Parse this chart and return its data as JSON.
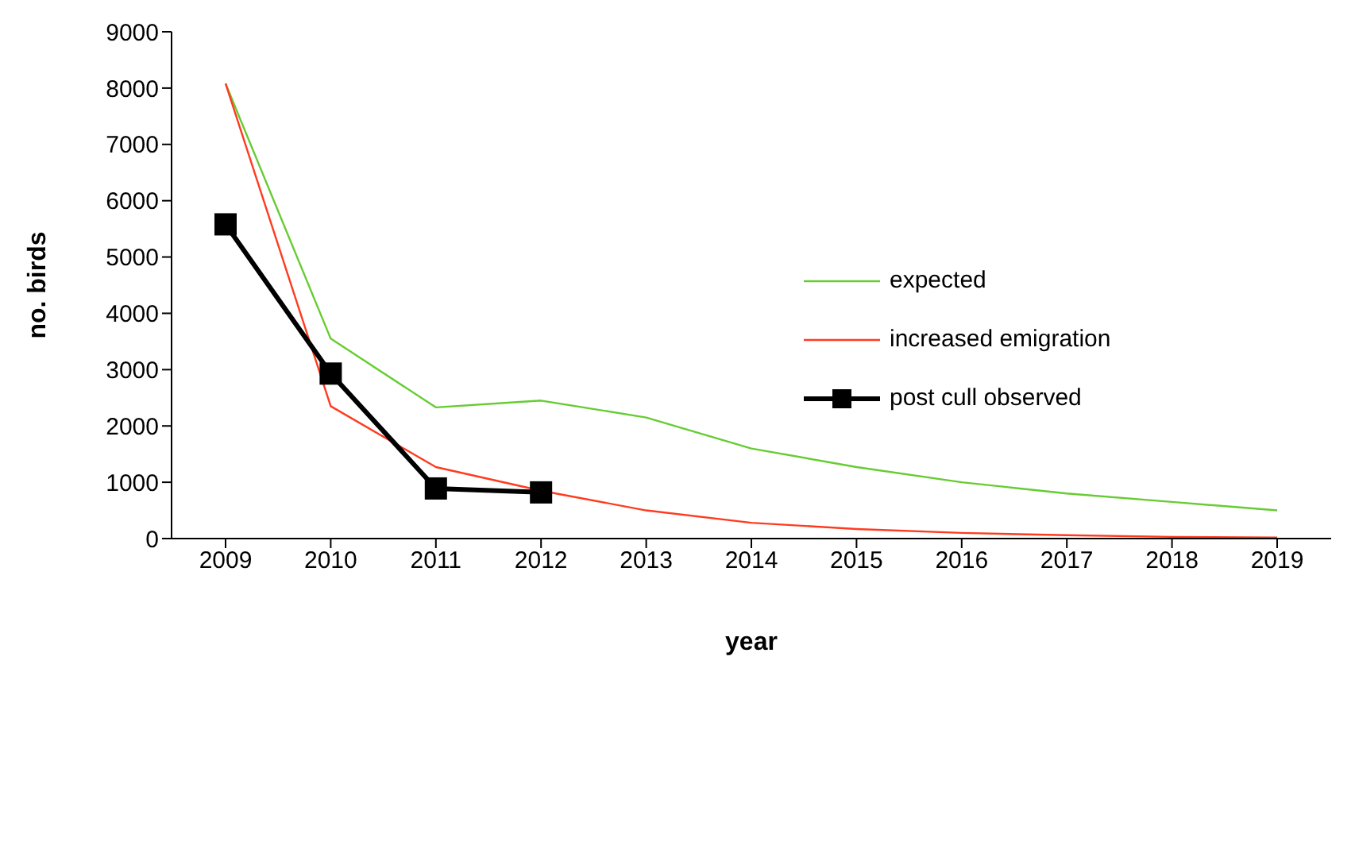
{
  "chart_data": {
    "type": "line",
    "xlabel": "year",
    "ylabel": "no. birds",
    "categories": [
      "2009",
      "2010",
      "2011",
      "2012",
      "2013",
      "2014",
      "2015",
      "2016",
      "2017",
      "2018",
      "2019"
    ],
    "series": [
      {
        "name": "expected",
        "color": "#66cc33",
        "marker": "none",
        "values": [
          8080,
          3550,
          2330,
          2450,
          2150,
          1600,
          1270,
          1000,
          800,
          650,
          500
        ]
      },
      {
        "name": "increased emigration",
        "color": "#ff3b1f",
        "marker": "none",
        "values": [
          8080,
          2350,
          1270,
          850,
          500,
          280,
          170,
          100,
          60,
          30,
          20
        ]
      },
      {
        "name": "post cull observed",
        "color": "#000000",
        "marker": "square",
        "values": [
          5580,
          2930,
          890,
          820,
          null,
          null,
          null,
          null,
          null,
          null,
          null
        ]
      }
    ],
    "ylim": [
      0,
      9000
    ],
    "yticks": [
      0,
      1000,
      2000,
      3000,
      4000,
      5000,
      6000,
      7000,
      8000,
      9000
    ],
    "grid": false,
    "legend": "right",
    "line_style": "solid"
  }
}
